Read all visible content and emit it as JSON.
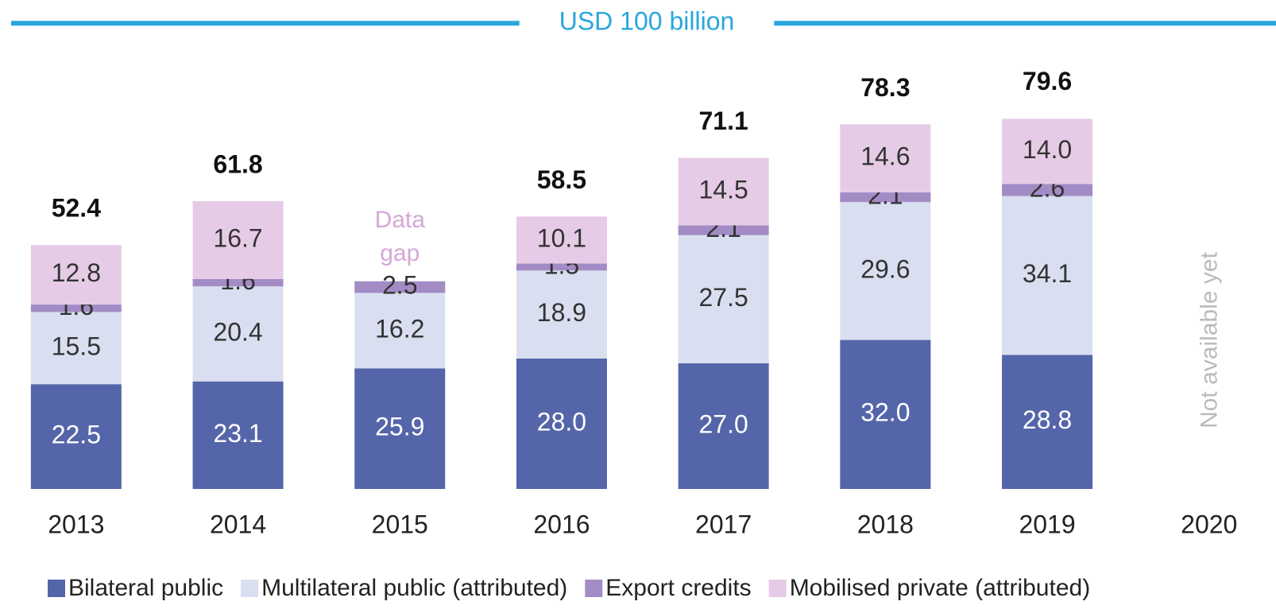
{
  "chart_data": {
    "type": "bar",
    "stacked": true,
    "categories": [
      "2013",
      "2014",
      "2015",
      "2016",
      "2017",
      "2018",
      "2019",
      "2020"
    ],
    "series": [
      {
        "name": "Bilateral public",
        "color": "#5565a9",
        "label_color": "#ffffff",
        "values": [
          22.5,
          23.1,
          25.9,
          28.0,
          27.0,
          32.0,
          28.8,
          null
        ],
        "value_labels": [
          "22.5",
          "23.1",
          "25.9",
          "28.0",
          "27.0",
          "32.0",
          "28.8",
          null
        ]
      },
      {
        "name": "Multilateral public (attributed)",
        "color": "#d9dff0",
        "label_color": "#333333",
        "values": [
          15.5,
          20.4,
          16.2,
          18.9,
          27.5,
          29.6,
          34.1,
          null
        ],
        "value_labels": [
          "15.5",
          "20.4",
          "16.2",
          "18.9",
          "27.5",
          "29.6",
          "34.1",
          null
        ]
      },
      {
        "name": "Export credits",
        "color": "#a38cc6",
        "label_color": "#333333",
        "values": [
          1.6,
          1.6,
          2.5,
          1.5,
          2.1,
          2.1,
          2.6,
          null
        ],
        "value_labels": [
          "1.6",
          "1.6",
          "2.5",
          "1.5",
          "2.1",
          "2.1",
          "2.6",
          null
        ]
      },
      {
        "name": "Mobilised private (attributed)",
        "color": "#e6cbe6",
        "label_color": "#333333",
        "values": [
          12.8,
          16.7,
          null,
          10.1,
          14.5,
          14.6,
          14.0,
          null
        ],
        "value_labels": [
          "12.8",
          "16.7",
          null,
          "10.1",
          "14.5",
          "14.6",
          "14.0",
          null
        ]
      }
    ],
    "totals": [
      52.4,
      61.8,
      null,
      58.5,
      71.1,
      78.3,
      79.6,
      null
    ],
    "target": {
      "value": 100,
      "label": "USD 100 billion",
      "color": "#29a6dd"
    },
    "annotations": [
      {
        "category": "2015",
        "text": "Data gap",
        "color": "#d6a8d6"
      },
      {
        "category": "2020",
        "text": "Not available yet",
        "color": "#bbbbbb"
      }
    ],
    "ylim": [
      0,
      105
    ],
    "legend": "bottom"
  }
}
